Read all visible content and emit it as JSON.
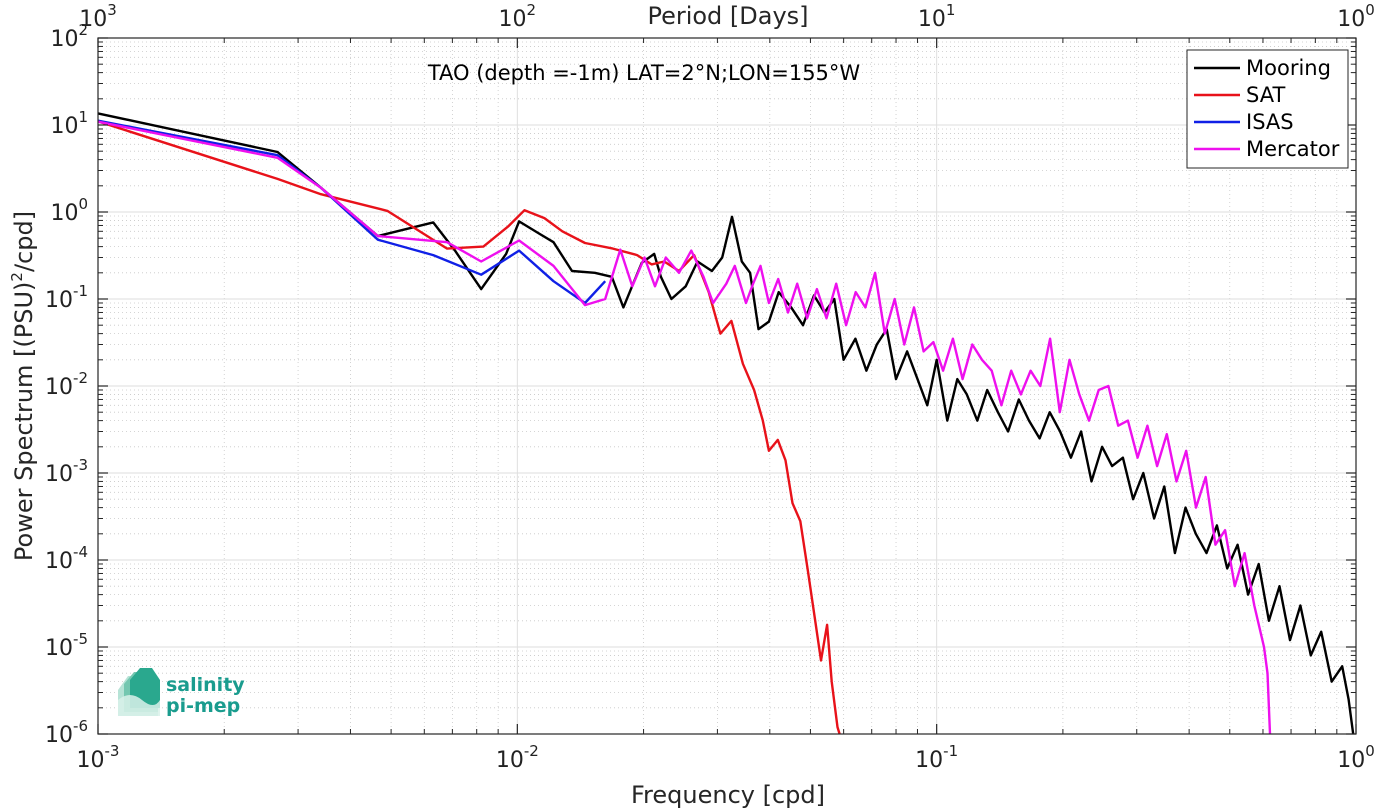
{
  "chart_data": {
    "type": "line",
    "title": "TAO (depth =-1m) LAT=2°N;LON=155°W",
    "xlabel": "Frequency [cpd]",
    "ylabel_main": "Power Spectrum [(PSU)",
    "ylabel_sup": "2",
    "ylabel_tail": "/cpd]",
    "top_axis_label": "Period [Days]",
    "x_scale": "log",
    "y_scale": "log",
    "xlim": [
      0.001,
      1
    ],
    "ylim": [
      1e-06,
      100
    ],
    "grid": true,
    "legend_position": "top-right",
    "x_ticks": [
      {
        "value": 0.001,
        "base": "10",
        "exp": "-3"
      },
      {
        "value": 0.01,
        "base": "10",
        "exp": "-2"
      },
      {
        "value": 0.1,
        "base": "10",
        "exp": "-1"
      },
      {
        "value": 1,
        "base": "10",
        "exp": "0"
      }
    ],
    "y_ticks": [
      {
        "value": 1e-06,
        "base": "10",
        "exp": "-6"
      },
      {
        "value": 1e-05,
        "base": "10",
        "exp": "-5"
      },
      {
        "value": 0.0001,
        "base": "10",
        "exp": "-4"
      },
      {
        "value": 0.001,
        "base": "10",
        "exp": "-3"
      },
      {
        "value": 0.01,
        "base": "10",
        "exp": "-2"
      },
      {
        "value": 0.1,
        "base": "10",
        "exp": "-1"
      },
      {
        "value": 1,
        "base": "10",
        "exp": "0"
      },
      {
        "value": 10,
        "base": "10",
        "exp": "1"
      },
      {
        "value": 100,
        "base": "10",
        "exp": "2"
      }
    ],
    "top_ticks": [
      {
        "value": 0.001,
        "base": "10",
        "exp": "3"
      },
      {
        "value": 0.01,
        "base": "10",
        "exp": "2"
      },
      {
        "value": 0.1,
        "base": "10",
        "exp": "1"
      },
      {
        "value": 1,
        "base": "10",
        "exp": "0"
      }
    ],
    "series": [
      {
        "name": "Mooring",
        "color": "#000000",
        "points": [
          [
            0.001,
            13.6
          ],
          [
            0.00268,
            4.9
          ],
          [
            0.0034,
            1.9
          ],
          [
            0.00465,
            0.53
          ],
          [
            0.0063,
            0.76
          ],
          [
            0.0071,
            0.36
          ],
          [
            0.0082,
            0.13
          ],
          [
            0.0094,
            0.33
          ],
          [
            0.0101,
            0.78
          ],
          [
            0.0113,
            0.56
          ],
          [
            0.0122,
            0.45
          ],
          [
            0.0135,
            0.21
          ],
          [
            0.0153,
            0.2
          ],
          [
            0.0168,
            0.18
          ],
          [
            0.0179,
            0.08
          ],
          [
            0.0198,
            0.26
          ],
          [
            0.0212,
            0.33
          ],
          [
            0.022,
            0.18
          ],
          [
            0.0233,
            0.1
          ],
          [
            0.0252,
            0.14
          ],
          [
            0.0269,
            0.27
          ],
          [
            0.0291,
            0.21
          ],
          [
            0.0308,
            0.3
          ],
          [
            0.0325,
            0.88
          ],
          [
            0.0343,
            0.27
          ],
          [
            0.0359,
            0.2
          ],
          [
            0.0376,
            0.045
          ],
          [
            0.0398,
            0.055
          ],
          [
            0.042,
            0.12
          ],
          [
            0.045,
            0.08
          ],
          [
            0.048,
            0.05
          ],
          [
            0.051,
            0.11
          ],
          [
            0.054,
            0.07
          ],
          [
            0.057,
            0.1
          ],
          [
            0.06,
            0.02
          ],
          [
            0.064,
            0.035
          ],
          [
            0.068,
            0.015
          ],
          [
            0.072,
            0.03
          ],
          [
            0.076,
            0.045
          ],
          [
            0.08,
            0.012
          ],
          [
            0.085,
            0.025
          ],
          [
            0.09,
            0.012
          ],
          [
            0.095,
            0.006
          ],
          [
            0.1,
            0.02
          ],
          [
            0.106,
            0.004
          ],
          [
            0.112,
            0.012
          ],
          [
            0.118,
            0.008
          ],
          [
            0.125,
            0.004
          ],
          [
            0.132,
            0.009
          ],
          [
            0.14,
            0.005
          ],
          [
            0.148,
            0.003
          ],
          [
            0.157,
            0.007
          ],
          [
            0.166,
            0.004
          ],
          [
            0.176,
            0.0025
          ],
          [
            0.186,
            0.005
          ],
          [
            0.197,
            0.003
          ],
          [
            0.209,
            0.0015
          ],
          [
            0.221,
            0.003
          ],
          [
            0.234,
            0.0008
          ],
          [
            0.248,
            0.002
          ],
          [
            0.262,
            0.0012
          ],
          [
            0.278,
            0.0015
          ],
          [
            0.294,
            0.0005
          ],
          [
            0.311,
            0.001
          ],
          [
            0.33,
            0.0003
          ],
          [
            0.349,
            0.0007
          ],
          [
            0.37,
            0.00012
          ],
          [
            0.392,
            0.0004
          ],
          [
            0.415,
            0.0002
          ],
          [
            0.44,
            0.00012
          ],
          [
            0.466,
            0.00025
          ],
          [
            0.493,
            8e-05
          ],
          [
            0.522,
            0.00015
          ],
          [
            0.553,
            4e-05
          ],
          [
            0.586,
            9e-05
          ],
          [
            0.62,
            2e-05
          ],
          [
            0.657,
            5e-05
          ],
          [
            0.696,
            1.2e-05
          ],
          [
            0.737,
            3e-05
          ],
          [
            0.78,
            8e-06
          ],
          [
            0.826,
            1.5e-05
          ],
          [
            0.875,
            4e-06
          ],
          [
            0.927,
            6e-06
          ],
          [
            0.96,
            2.5e-06
          ],
          [
            0.985,
            1e-06
          ]
        ]
      },
      {
        "name": "SAT",
        "color": "#e8121a",
        "points": [
          [
            0.001,
            11.0
          ],
          [
            0.00268,
            2.4
          ],
          [
            0.0034,
            1.6
          ],
          [
            0.0049,
            1.03
          ],
          [
            0.0068,
            0.38
          ],
          [
            0.0083,
            0.4
          ],
          [
            0.0095,
            0.68
          ],
          [
            0.0104,
            1.05
          ],
          [
            0.0116,
            0.85
          ],
          [
            0.0128,
            0.6
          ],
          [
            0.0145,
            0.44
          ],
          [
            0.0169,
            0.38
          ],
          [
            0.0193,
            0.32
          ],
          [
            0.0209,
            0.25
          ],
          [
            0.0224,
            0.27
          ],
          [
            0.0243,
            0.21
          ],
          [
            0.0264,
            0.32
          ],
          [
            0.0286,
            0.12
          ],
          [
            0.0305,
            0.04
          ],
          [
            0.0324,
            0.056
          ],
          [
            0.0345,
            0.018
          ],
          [
            0.0367,
            0.009
          ],
          [
            0.0385,
            0.004
          ],
          [
            0.0398,
            0.0018
          ],
          [
            0.0418,
            0.0024
          ],
          [
            0.0436,
            0.0014
          ],
          [
            0.0453,
            0.00045
          ],
          [
            0.0473,
            0.00028
          ],
          [
            0.0493,
            7.5e-05
          ],
          [
            0.0515,
            1.8e-05
          ],
          [
            0.053,
            7e-06
          ],
          [
            0.0548,
            1.8e-05
          ],
          [
            0.0562,
            4e-06
          ],
          [
            0.058,
            1.2e-06
          ],
          [
            0.0587,
            1e-06
          ]
        ]
      },
      {
        "name": "ISAS",
        "color": "#1020e6",
        "points": [
          [
            0.001,
            11.2
          ],
          [
            0.00268,
            4.5
          ],
          [
            0.0034,
            1.9
          ],
          [
            0.00465,
            0.48
          ],
          [
            0.0063,
            0.32
          ],
          [
            0.0082,
            0.19
          ],
          [
            0.0101,
            0.36
          ],
          [
            0.0122,
            0.16
          ],
          [
            0.0145,
            0.09
          ],
          [
            0.0162,
            0.16
          ]
        ]
      },
      {
        "name": "Mercator",
        "color": "#ee10ee",
        "points": [
          [
            0.001,
            10.9
          ],
          [
            0.00268,
            4.2
          ],
          [
            0.0034,
            1.9
          ],
          [
            0.00465,
            0.53
          ],
          [
            0.0068,
            0.45
          ],
          [
            0.0082,
            0.27
          ],
          [
            0.0101,
            0.47
          ],
          [
            0.0122,
            0.24
          ],
          [
            0.0145,
            0.085
          ],
          [
            0.0162,
            0.1
          ],
          [
            0.0176,
            0.37
          ],
          [
            0.0188,
            0.14
          ],
          [
            0.0201,
            0.3
          ],
          [
            0.0213,
            0.14
          ],
          [
            0.0226,
            0.3
          ],
          [
            0.0243,
            0.2
          ],
          [
            0.026,
            0.36
          ],
          [
            0.0278,
            0.18
          ],
          [
            0.0293,
            0.09
          ],
          [
            0.0315,
            0.15
          ],
          [
            0.033,
            0.24
          ],
          [
            0.0351,
            0.09
          ],
          [
            0.0365,
            0.15
          ],
          [
            0.038,
            0.24
          ],
          [
            0.0398,
            0.09
          ],
          [
            0.0419,
            0.17
          ],
          [
            0.0442,
            0.07
          ],
          [
            0.0465,
            0.15
          ],
          [
            0.0491,
            0.06
          ],
          [
            0.0518,
            0.13
          ],
          [
            0.0546,
            0.06
          ],
          [
            0.0576,
            0.15
          ],
          [
            0.0608,
            0.05
          ],
          [
            0.0641,
            0.12
          ],
          [
            0.0676,
            0.08
          ],
          [
            0.0713,
            0.2
          ],
          [
            0.0752,
            0.04
          ],
          [
            0.0794,
            0.1
          ],
          [
            0.0837,
            0.03
          ],
          [
            0.0883,
            0.08
          ],
          [
            0.0931,
            0.025
          ],
          [
            0.0982,
            0.032
          ],
          [
            0.1036,
            0.015
          ],
          [
            0.1093,
            0.035
          ],
          [
            0.1153,
            0.012
          ],
          [
            0.1216,
            0.03
          ],
          [
            0.1283,
            0.02
          ],
          [
            0.1353,
            0.015
          ],
          [
            0.1427,
            0.006
          ],
          [
            0.1506,
            0.015
          ],
          [
            0.1588,
            0.008
          ],
          [
            0.1675,
            0.015
          ],
          [
            0.1767,
            0.01
          ],
          [
            0.1864,
            0.035
          ],
          [
            0.1966,
            0.005
          ],
          [
            0.2074,
            0.02
          ],
          [
            0.2188,
            0.008
          ],
          [
            0.2308,
            0.004
          ],
          [
            0.2435,
            0.009
          ],
          [
            0.2568,
            0.01
          ],
          [
            0.2709,
            0.0035
          ],
          [
            0.2858,
            0.004
          ],
          [
            0.3014,
            0.0015
          ],
          [
            0.318,
            0.0035
          ],
          [
            0.3354,
            0.0012
          ],
          [
            0.3538,
            0.0028
          ],
          [
            0.3732,
            0.0008
          ],
          [
            0.3937,
            0.0018
          ],
          [
            0.4153,
            0.0004
          ],
          [
            0.438,
            0.0009
          ],
          [
            0.4621,
            0.00015
          ],
          [
            0.4874,
            0.00022
          ],
          [
            0.5141,
            5e-05
          ],
          [
            0.5423,
            0.00012
          ],
          [
            0.5721,
            3e-05
          ],
          [
            0.6035,
            1e-05
          ],
          [
            0.615,
            5e-06
          ],
          [
            0.6235,
            1e-06
          ]
        ]
      }
    ]
  },
  "logo": {
    "line1": "salinity",
    "line2": "pi-mep"
  }
}
